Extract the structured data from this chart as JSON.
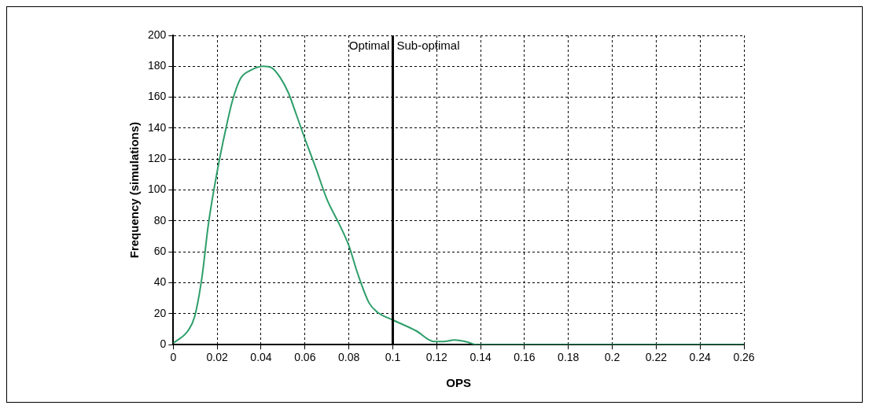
{
  "chart_data": {
    "type": "line",
    "xlabel": "OPS",
    "ylabel": "Frequency (simulations)",
    "xlim": [
      0,
      0.26
    ],
    "xticks": [
      0,
      0.02,
      0.04,
      0.06,
      0.08,
      0.1,
      0.12,
      0.14,
      0.16,
      0.18,
      0.2,
      0.22,
      0.24,
      0.26
    ],
    "ylim": [
      0,
      200
    ],
    "yticks": [
      0,
      20,
      40,
      60,
      80,
      100,
      120,
      140,
      160,
      180,
      200
    ],
    "grid": true,
    "legend": false,
    "marker": "none",
    "line_style": "solid",
    "series": [
      {
        "color": "#2e9e6a",
        "x": [
          0,
          0.0067,
          0.0097,
          0.013,
          0.016,
          0.02,
          0.024,
          0.027,
          0.0306,
          0.0347,
          0.041,
          0.0449,
          0.0486,
          0.0524,
          0.056,
          0.06,
          0.065,
          0.07,
          0.0756,
          0.08,
          0.084,
          0.0892,
          0.093,
          0.1,
          0.1106,
          0.1188,
          0.1231,
          0.1281,
          0.1344,
          0.137,
          0.14,
          0.18,
          0.22,
          0.26
        ],
        "values": [
          1,
          9,
          18,
          43,
          78,
          112,
          140,
          158,
          172,
          177,
          180,
          179,
          173,
          163,
          149,
          133,
          114,
          94,
          78,
          64,
          46,
          27,
          21,
          16,
          9,
          2,
          2,
          3,
          1.5,
          0.3,
          0,
          0,
          0,
          0
        ]
      }
    ],
    "ref_lines": [
      {
        "axis": "x",
        "value": 0.1,
        "color": "#000000"
      }
    ],
    "annotations": [
      {
        "text": "Optimal",
        "x": 0.1,
        "y": 193
      },
      {
        "text": "Sub-optimal",
        "x": 0.1,
        "y": 193
      }
    ]
  }
}
